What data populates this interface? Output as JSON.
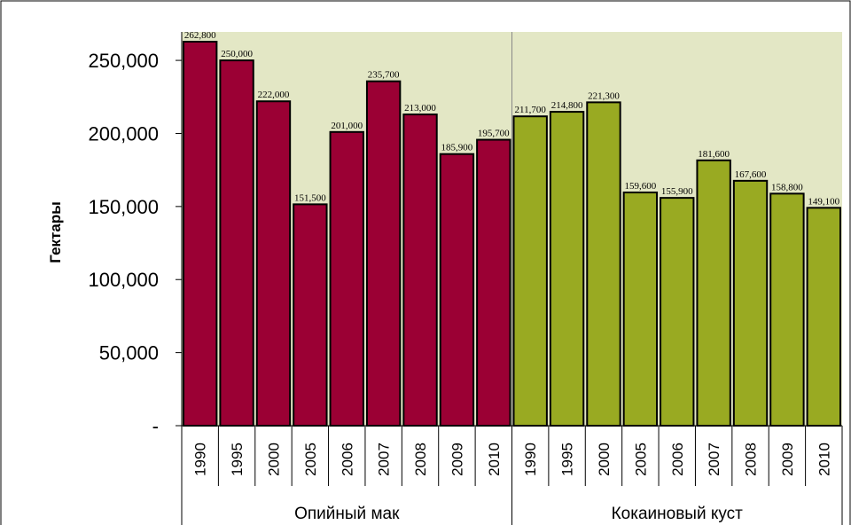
{
  "chart_data": {
    "type": "bar",
    "ylabel": "Гектары",
    "ylim": [
      0,
      262800
    ],
    "yticks": [
      {
        "value": 0,
        "label": "-"
      },
      {
        "value": 50000,
        "label": "50,000"
      },
      {
        "value": 100000,
        "label": "100,000"
      },
      {
        "value": 150000,
        "label": "150,000"
      },
      {
        "value": 200000,
        "label": "200,000"
      },
      {
        "value": 250000,
        "label": "250,000"
      }
    ],
    "grid": false,
    "groups": [
      {
        "name": "Опийный мак",
        "color": "#9B0034",
        "categories": [
          "1990",
          "1995",
          "2000",
          "2005",
          "2006",
          "2007",
          "2008",
          "2009",
          "2010"
        ],
        "values": [
          262800,
          250000,
          222000,
          151500,
          201000,
          235700,
          213000,
          185900,
          195700
        ],
        "labels": [
          "262,800",
          "250,000",
          "222,000",
          "151,500",
          "201,000",
          "235,700",
          "213,000",
          "185,900",
          "195,700"
        ]
      },
      {
        "name": "Кокаиновый куст",
        "color": "#99AA22",
        "categories": [
          "1990",
          "1995",
          "2000",
          "2005",
          "2006",
          "2007",
          "2008",
          "2009",
          "2010"
        ],
        "values": [
          211700,
          214800,
          221300,
          159600,
          155900,
          181600,
          167600,
          158800,
          149100
        ],
        "labels": [
          "211,700",
          "214,800",
          "221,300",
          "159,600",
          "155,900",
          "181,600",
          "167,600",
          "158,800",
          "149,100"
        ]
      }
    ],
    "plot_background": "#E3E7C5"
  }
}
